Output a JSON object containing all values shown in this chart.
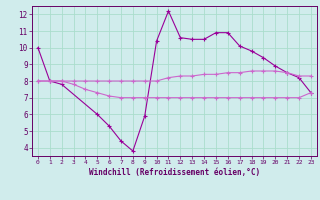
{
  "xlabel": "Windchill (Refroidissement éolien,°C)",
  "x": [
    0,
    1,
    2,
    3,
    4,
    5,
    6,
    7,
    8,
    9,
    10,
    11,
    12,
    13,
    14,
    15,
    16,
    17,
    18,
    19,
    20,
    21,
    22,
    23
  ],
  "line1": [
    10.0,
    8.0,
    7.8,
    null,
    null,
    6.0,
    5.3,
    4.4,
    3.8,
    5.9,
    10.4,
    12.2,
    10.6,
    10.5,
    10.5,
    10.9,
    10.9,
    10.1,
    9.8,
    9.4,
    8.9,
    8.5,
    8.2,
    7.3
  ],
  "line2": [
    8.0,
    8.0,
    8.0,
    8.0,
    8.0,
    8.0,
    8.0,
    8.0,
    8.0,
    8.0,
    8.0,
    8.2,
    8.3,
    8.3,
    8.4,
    8.4,
    8.5,
    8.5,
    8.6,
    8.6,
    8.6,
    8.5,
    8.3,
    8.3
  ],
  "line3": [
    8.0,
    8.0,
    8.0,
    7.8,
    7.5,
    7.3,
    7.1,
    7.0,
    7.0,
    7.0,
    7.0,
    7.0,
    7.0,
    7.0,
    7.0,
    7.0,
    7.0,
    7.0,
    7.0,
    7.0,
    7.0,
    7.0,
    7.0,
    7.3
  ],
  "line_color1": "#990099",
  "line_color2": "#cc66cc",
  "line_color3": "#cc66cc",
  "bg_color": "#d0ecec",
  "grid_color": "#aaddcc",
  "axis_color": "#660066",
  "ylim": [
    3.5,
    12.5
  ],
  "xlim": [
    -0.5,
    23.5
  ],
  "yticks": [
    4,
    5,
    6,
    7,
    8,
    9,
    10,
    11,
    12
  ],
  "xticks": [
    0,
    1,
    2,
    3,
    4,
    5,
    6,
    7,
    8,
    9,
    10,
    11,
    12,
    13,
    14,
    15,
    16,
    17,
    18,
    19,
    20,
    21,
    22,
    23
  ]
}
